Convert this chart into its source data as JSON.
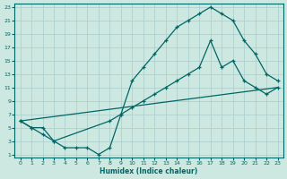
{
  "xlabel": "Humidex (Indice chaleur)",
  "bg_color": "#cce8e0",
  "grid_color": "#aacccc",
  "line_color": "#006666",
  "xlim": [
    0,
    23
  ],
  "ylim": [
    1,
    23
  ],
  "xticks": [
    0,
    1,
    2,
    3,
    4,
    5,
    6,
    7,
    8,
    9,
    10,
    11,
    12,
    13,
    14,
    15,
    16,
    17,
    18,
    19,
    20,
    21,
    22,
    23
  ],
  "yticks": [
    1,
    3,
    5,
    7,
    9,
    11,
    13,
    15,
    17,
    19,
    21,
    23
  ],
  "series1_x": [
    0,
    1,
    2,
    3,
    4,
    5,
    6,
    7,
    8,
    9,
    10,
    11,
    12,
    13,
    14,
    15,
    16,
    17,
    18,
    19,
    20,
    21,
    22,
    23
  ],
  "series1_y": [
    6,
    5,
    5,
    3,
    2,
    2,
    2,
    1,
    2,
    7,
    12,
    14,
    16,
    18,
    20,
    21,
    22,
    23,
    22,
    21,
    18,
    16,
    13,
    12
  ],
  "series2_x": [
    0,
    1,
    2,
    3,
    8,
    9,
    10,
    11,
    12,
    13,
    14,
    15,
    16,
    17,
    18,
    19,
    20,
    21,
    22,
    23
  ],
  "series2_y": [
    6,
    5,
    4,
    3,
    6,
    7,
    8,
    9,
    10,
    11,
    12,
    13,
    14,
    18,
    14,
    15,
    12,
    11,
    10,
    11
  ],
  "series3_x": [
    0,
    23
  ],
  "series3_y": [
    6,
    11
  ]
}
